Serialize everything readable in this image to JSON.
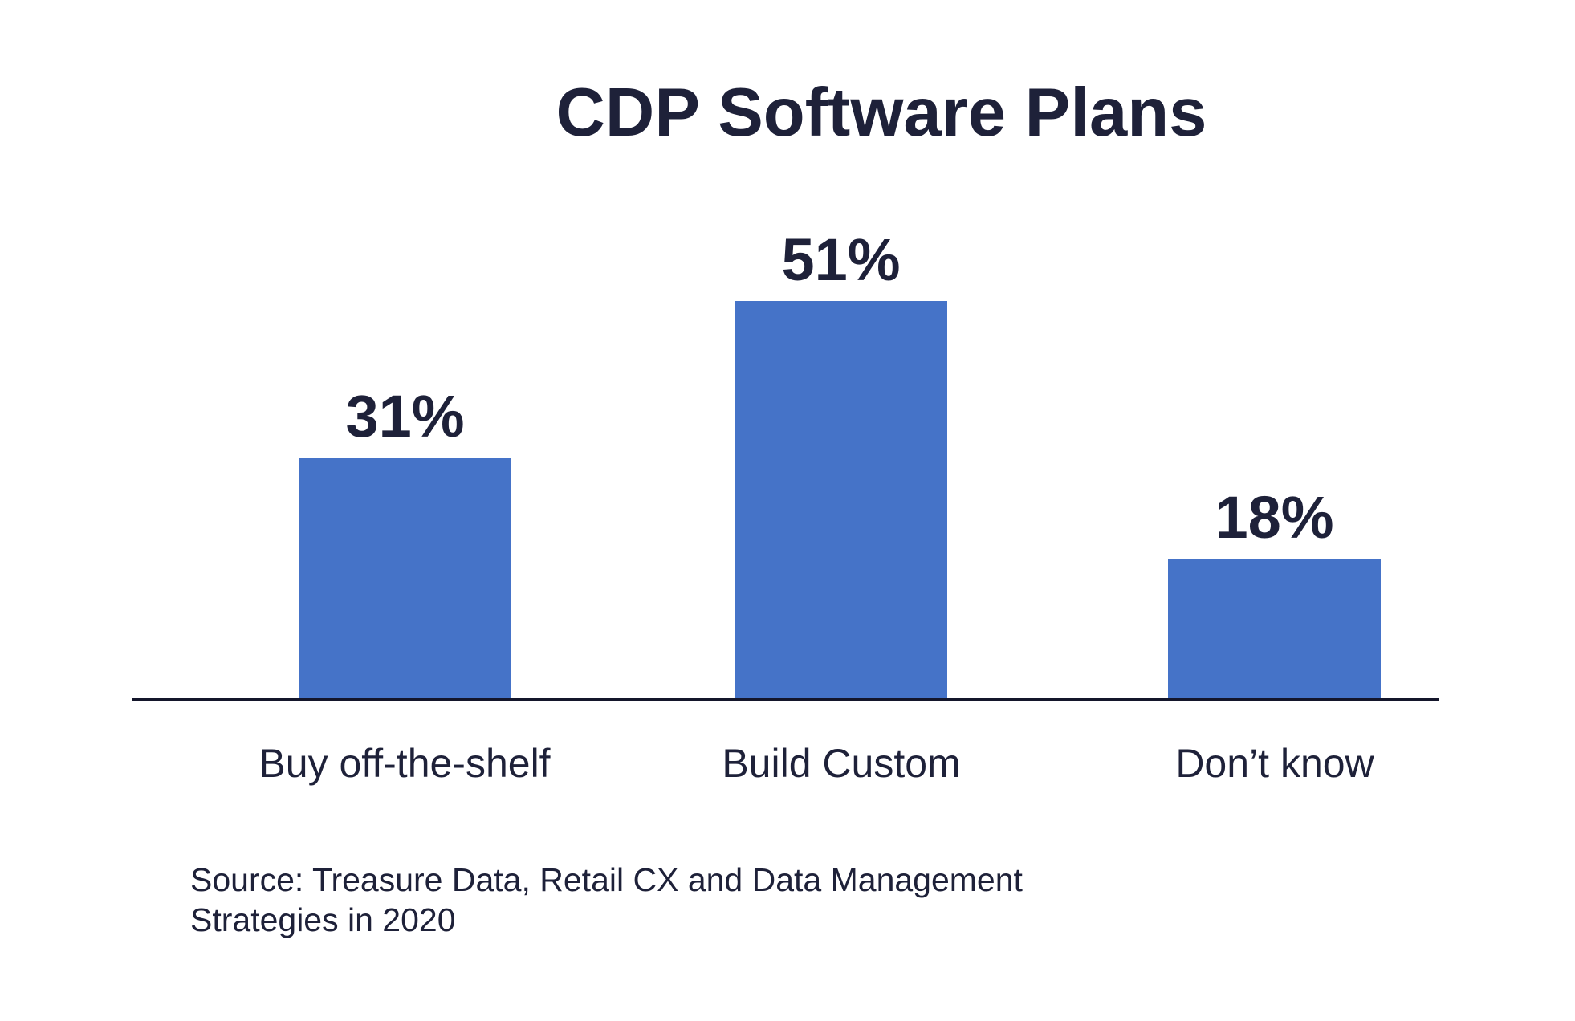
{
  "chart_data": {
    "type": "bar",
    "title": "CDP Software Plans",
    "categories": [
      "Buy off-the-shelf",
      "Build Custom",
      "Don’t know"
    ],
    "values": [
      31,
      51,
      18
    ],
    "value_labels": [
      "31%",
      "51%",
      "18%"
    ],
    "xlabel": "",
    "ylabel": "",
    "ylim": [
      0,
      55
    ],
    "grid": false,
    "legend": false,
    "source_lines": [
      "Source: Treasure Data, Retail CX and Data Management",
      "Strategies in 2020"
    ],
    "bar_color": "#4573c8",
    "text_color": "#1e2139",
    "axis_color": "#14162b",
    "background_color": "#ffffff"
  }
}
